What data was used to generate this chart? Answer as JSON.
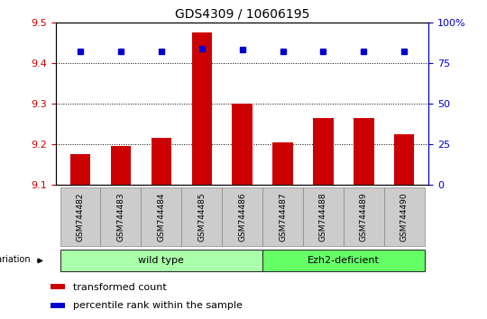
{
  "title": "GDS4309 / 10606195",
  "samples": [
    "GSM744482",
    "GSM744483",
    "GSM744484",
    "GSM744485",
    "GSM744486",
    "GSM744487",
    "GSM744488",
    "GSM744489",
    "GSM744490"
  ],
  "bar_values": [
    9.175,
    9.195,
    9.215,
    9.475,
    9.3,
    9.205,
    9.265,
    9.265,
    9.225
  ],
  "percentile_values": [
    82,
    82,
    82,
    84,
    83,
    82,
    82,
    82,
    82
  ],
  "ylim_left": [
    9.1,
    9.5
  ],
  "ylim_right": [
    0,
    100
  ],
  "yticks_left": [
    9.1,
    9.2,
    9.3,
    9.4,
    9.5
  ],
  "yticks_right": [
    0,
    25,
    50,
    75,
    100
  ],
  "ytick_labels_right": [
    "0",
    "25",
    "50",
    "75",
    "100%"
  ],
  "bar_color": "#cc0000",
  "dot_color": "#0000cc",
  "background_color": "#ffffff",
  "plot_bg_color": "#ffffff",
  "wild_type_indices": [
    0,
    1,
    2,
    3,
    4
  ],
  "ezh2_indices": [
    5,
    6,
    7,
    8
  ],
  "wild_type_label": "wild type",
  "ezh2_label": "Ezh2-deficient",
  "wild_type_color": "#aaffaa",
  "ezh2_color": "#66ff66",
  "genotype_label": "genotype/variation",
  "legend_bar_label": "transformed count",
  "legend_dot_label": "percentile rank within the sample",
  "tick_label_color_left": "#cc0000",
  "tick_label_color_right": "#0000cc",
  "tick_box_color": "#cccccc",
  "bar_width": 0.5
}
